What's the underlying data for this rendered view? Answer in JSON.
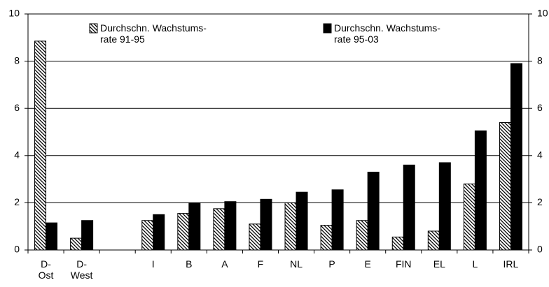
{
  "chart_data": {
    "type": "bar",
    "categories": [
      "D-\nOst",
      "D-\nWest",
      null,
      "I",
      "B",
      "A",
      "F",
      "NL",
      "P",
      "E",
      "FIN",
      "EL",
      "L",
      "IRL"
    ],
    "series": [
      {
        "name": "Durchschn. Wachstums-\nrate 91-95",
        "color": "#000000",
        "pattern": "hatch",
        "values": [
          8.85,
          0.5,
          null,
          1.25,
          1.55,
          1.75,
          1.1,
          2.0,
          1.05,
          1.25,
          0.55,
          0.8,
          2.8,
          5.4
        ]
      },
      {
        "name": "Durchschn. Wachstums-\nrate 95-03",
        "color": "#000000",
        "pattern": "solid",
        "values": [
          1.15,
          1.25,
          null,
          1.5,
          2.0,
          2.05,
          2.15,
          2.45,
          2.55,
          3.3,
          3.6,
          3.7,
          5.05,
          7.9
        ]
      }
    ],
    "ylim": [
      0,
      10
    ],
    "yticks": [
      0,
      2,
      4,
      6,
      8,
      10
    ],
    "y2lim": [
      0,
      10
    ],
    "y2ticks": [
      0,
      2,
      4,
      6,
      8,
      10
    ],
    "grid": true,
    "legend": "top"
  }
}
